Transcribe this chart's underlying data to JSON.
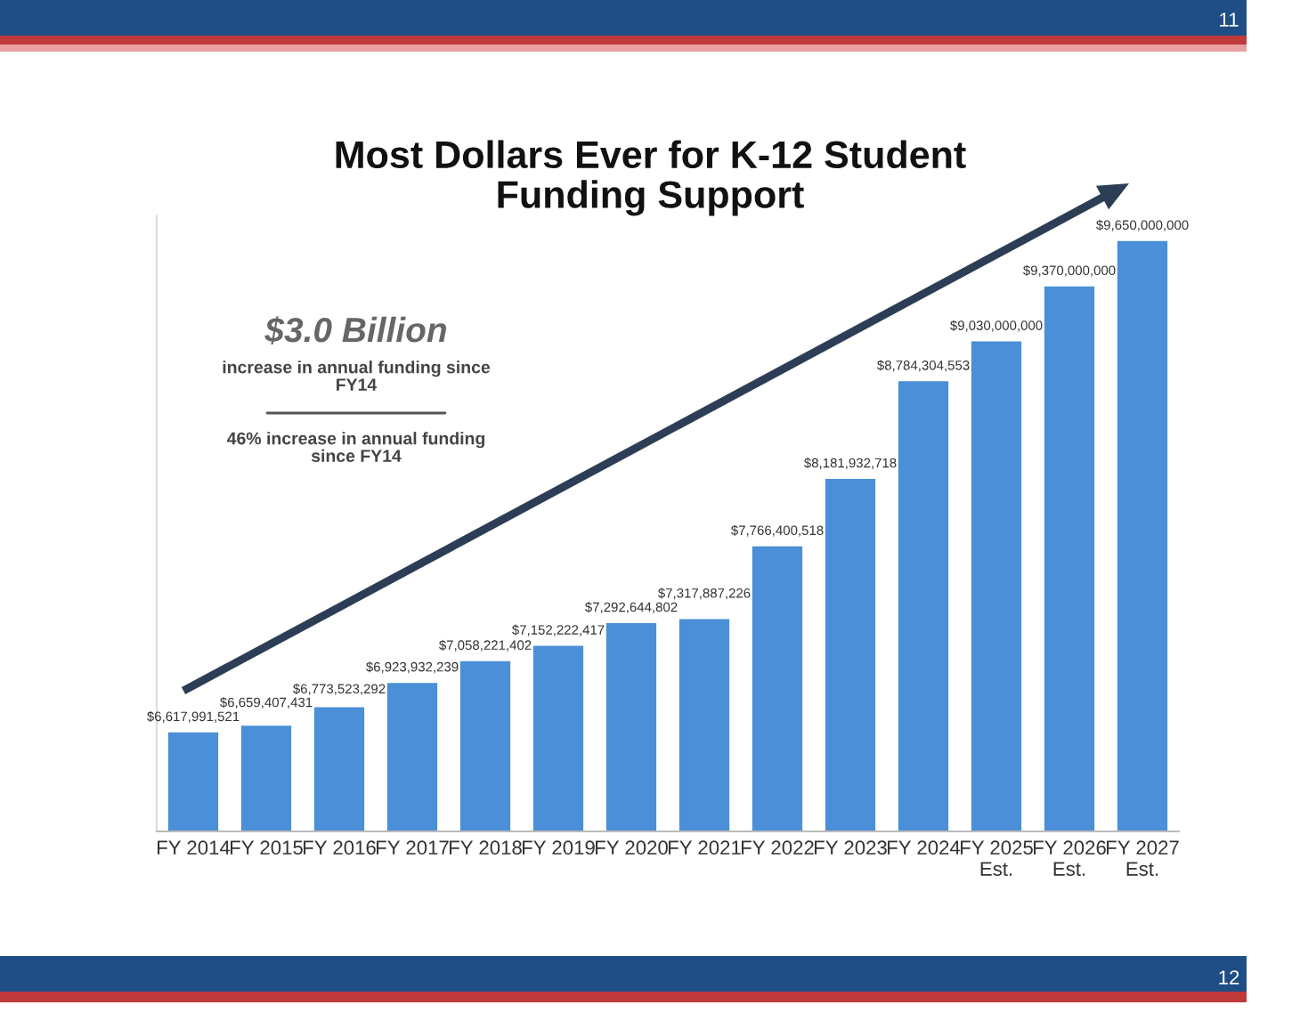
{
  "chart_data": {
    "type": "bar",
    "title": "Most Dollars Ever for K-12 Student\nFunding Support",
    "categories": [
      "FY 2014",
      "FY 2015",
      "FY 2016",
      "FY 2017",
      "FY 2018",
      "FY 2019",
      "FY 2020",
      "FY 2021",
      "FY 2022",
      "FY 2023",
      "FY 2024",
      "FY 2025\nEst.",
      "FY 2026\nEst.",
      "FY 2027\nEst."
    ],
    "values": [
      6617991521,
      6659407431,
      6773523292,
      6923932239,
      7058221402,
      7152222417,
      7292644802,
      7317887226,
      7766400518,
      8181932718,
      8784304553,
      9030000000,
      9370000000,
      9650000000
    ],
    "value_labels": [
      "$6,617,991,521",
      "$6,659,407,431",
      "$6,773,523,292",
      "$6,923,932,239",
      "$7,058,221,402",
      "$7,152,222,417",
      "$7,292,644,802",
      "$7,317,887,226",
      "$7,766,400,518",
      "$8,181,932,718",
      "$8,784,304,553",
      "$9,030,000,000",
      "$9,370,000,000",
      "$9,650,000,000"
    ],
    "color": "#4a8fd8",
    "ylim": [
      6000000000,
      9800000000
    ],
    "tick_labels": "x",
    "grid": false,
    "annotations": [
      "$3.0 Billion",
      "increase in annual funding since\nFY14",
      "46% increase in annual funding\nsince FY14",
      "11",
      "12"
    ]
  }
}
